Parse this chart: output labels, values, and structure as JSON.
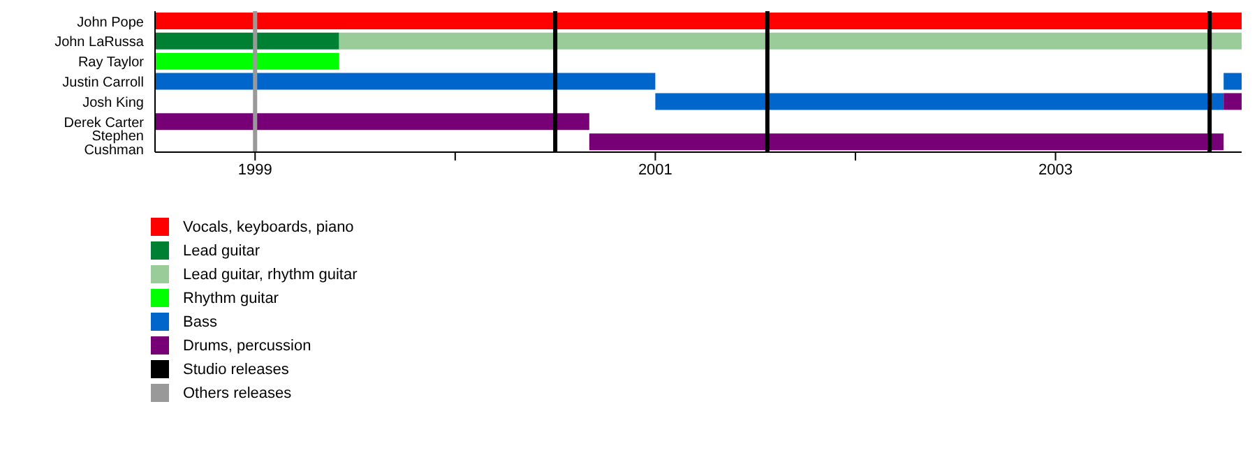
{
  "chart_data": {
    "type": "bar",
    "orientation": "horizontal",
    "categories": [
      "John Pope",
      "John LaRussa",
      "Ray Taylor",
      "Justin Carroll",
      "Josh King",
      "Derek Carter",
      "Stephen Cushman"
    ],
    "xlim": [
      1998.5,
      2003.93
    ],
    "xticks": [
      1999,
      {
        "value": 2000,
        "label": null
      },
      2001,
      {
        "value": 2002,
        "label": null
      },
      2003
    ],
    "series": [
      {
        "name": "Vocals, keyboards, piano",
        "color": "#ff0000",
        "base": [
          1998.5,
          null,
          null,
          null,
          null,
          null,
          null
        ],
        "values": [
          5.43,
          null,
          null,
          null,
          null,
          null,
          null
        ]
      },
      {
        "name": "Lead guitar",
        "color": "#008033",
        "base": [
          null,
          1998.5,
          null,
          null,
          null,
          null,
          null
        ],
        "values": [
          null,
          0.92,
          null,
          null,
          null,
          null,
          null
        ]
      },
      {
        "name": "Lead guitar, rhythm guitar",
        "color": "#99cc99",
        "base": [
          null,
          1999.42,
          null,
          null,
          null,
          null,
          null
        ],
        "values": [
          null,
          4.51,
          null,
          null,
          null,
          null,
          null
        ]
      },
      {
        "name": "Rhythm guitar",
        "color": "#00ff00",
        "base": [
          null,
          null,
          1998.5,
          null,
          null,
          null,
          null
        ],
        "values": [
          null,
          null,
          0.92,
          null,
          null,
          null,
          null
        ]
      },
      {
        "name": "Bass",
        "color": "#0066cc",
        "base": [
          null,
          null,
          null,
          1998.5,
          2001.0,
          null,
          null
        ],
        "values": [
          null,
          null,
          null,
          2.5,
          2.84,
          null,
          null
        ]
      },
      {
        "color": "#0066cc",
        "base": [
          null,
          null,
          null,
          2003.84,
          null,
          null,
          null
        ],
        "values": [
          null,
          null,
          null,
          0.09,
          null,
          null,
          null
        ]
      },
      {
        "name": "Drums, percussion",
        "color": "#770077",
        "base": [
          null,
          null,
          null,
          null,
          2003.84,
          1998.5,
          2000.67
        ],
        "values": [
          null,
          null,
          null,
          null,
          0.09,
          2.17,
          3.17
        ]
      }
    ],
    "ref_lines": [
      {
        "axis": "x",
        "value": 2000.5,
        "label": "Studio releases",
        "color": "#000000"
      },
      {
        "axis": "x",
        "value": 2001.56,
        "color": "#000000"
      },
      {
        "axis": "x",
        "value": 2003.77,
        "color": "#000000"
      },
      {
        "axis": "x",
        "value": 1999.0,
        "label": "Others releases",
        "color": "#999999"
      }
    ],
    "legend": "bottom"
  }
}
